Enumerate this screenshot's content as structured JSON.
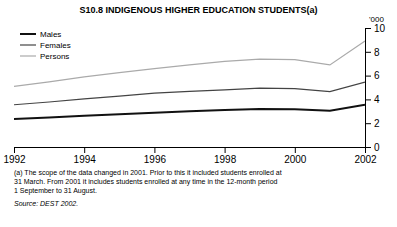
{
  "chart_data": {
    "type": "line",
    "title": "S10.8   INDIGENOUS HIGHER EDUCATION STUDENTS(a)",
    "ylabel": "'000",
    "x": [
      1992,
      1993,
      1994,
      1995,
      1996,
      1997,
      1998,
      1999,
      2000,
      2001,
      2002
    ],
    "series": [
      {
        "name": "Males",
        "color": "#111111",
        "values": [
          2.35,
          2.48,
          2.62,
          2.75,
          2.88,
          3.0,
          3.1,
          3.2,
          3.18,
          3.05,
          3.55
        ]
      },
      {
        "name": "Females",
        "color": "#444444",
        "values": [
          3.55,
          3.78,
          4.05,
          4.28,
          4.52,
          4.68,
          4.8,
          4.95,
          4.9,
          4.65,
          5.45
        ]
      },
      {
        "name": "Persons",
        "color": "#aaaaaa",
        "values": [
          5.1,
          5.48,
          5.9,
          6.25,
          6.58,
          6.9,
          7.2,
          7.38,
          7.35,
          6.9,
          8.9
        ]
      }
    ],
    "xlim": [
      1992,
      2002
    ],
    "xticks": [
      1992,
      1994,
      1996,
      1998,
      2000,
      2002
    ],
    "ylim": [
      0,
      10
    ],
    "yticks": [
      0,
      2,
      4,
      6,
      8,
      10
    ],
    "legend": "upper left",
    "annotations": [
      "(a) The scope of the data changed in 2001. Prior to this it included students enrolled at\n31 March.  From 2001 it includes students enrolled at any time in the 12-month period\n1 September to 31 August.",
      "Source: DEST 2002."
    ]
  }
}
